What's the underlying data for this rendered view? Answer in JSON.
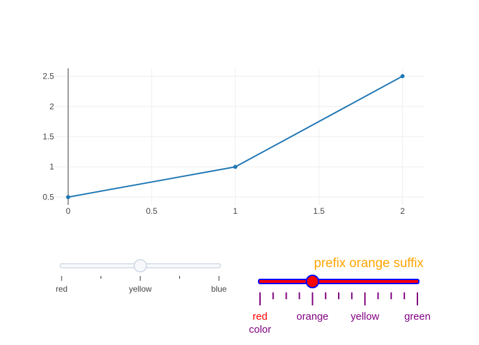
{
  "chart_data": {
    "type": "line",
    "x": [
      0,
      1,
      2
    ],
    "y": [
      0.5,
      1,
      2.5
    ],
    "xlim": [
      -0.08,
      2.13
    ],
    "ylim": [
      0.37,
      2.63
    ],
    "x_ticks": [
      0,
      0.5,
      1,
      1.5,
      2
    ],
    "x_tick_labels": [
      "0",
      "0.5",
      "1",
      "1.5",
      "2"
    ],
    "y_ticks": [
      0.5,
      1,
      1.5,
      2,
      2.5
    ],
    "y_tick_labels": [
      "0.5",
      "1",
      "1.5",
      "2",
      "2.5"
    ],
    "line_color": "#1f77b4",
    "grid": true
  },
  "slider_left": {
    "steps": [
      "red",
      "yellow",
      "blue"
    ],
    "active_index": 1,
    "track_color": "#f8fafc",
    "track_border": "#bec8d9",
    "handle_fill": "#f6f8fc",
    "tick_color": "#333333",
    "label_color": "#444444"
  },
  "slider_right": {
    "current_value": {
      "prefix": "prefix",
      "value": "orange",
      "suffix": "suffix",
      "color": "#ffa500"
    },
    "steps": [
      "red",
      "orange",
      "yellow",
      "green"
    ],
    "step_colors": [
      "#ff0000",
      "#800080",
      "#800080",
      "#800080"
    ],
    "label_extra": "color",
    "label_extra_color": "#800080",
    "active_index": 1,
    "track_fill": "#ff0000",
    "track_border": "#0000ff",
    "handle_fill": "#ff0000",
    "handle_border": "#0000ff",
    "tick_color": "#800080"
  }
}
